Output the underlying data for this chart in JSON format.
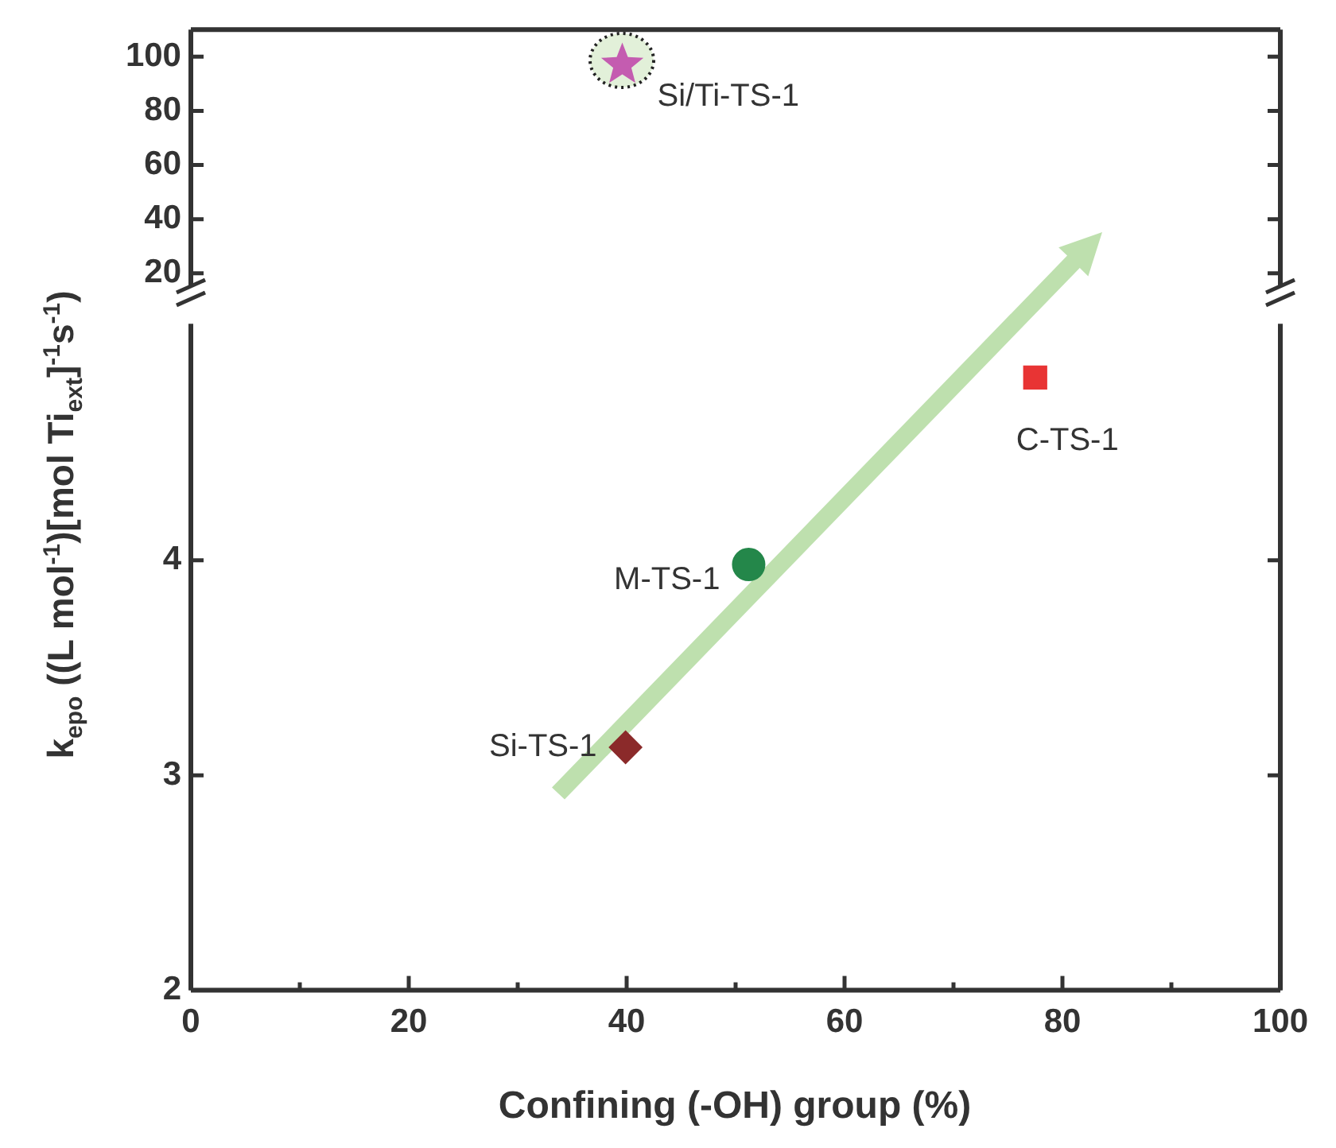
{
  "chart_data": [
    {
      "type": "scatter",
      "xlim": [
        0,
        100
      ],
      "ylim": [
        15,
        110
      ],
      "yticks": [
        20,
        40,
        60,
        80,
        100
      ],
      "tick_labels": "y",
      "series": [
        {
          "name": "Si/Ti-TS-1",
          "color": "#c45cb0",
          "marker": "star",
          "x": [
            39.6
          ],
          "values": [
            97
          ]
        }
      ]
    },
    {
      "type": "scatter",
      "xlabel": "Confining (-OH) group (%)",
      "ylabel": "k$_{epo}$ ((L mol$^{-1}$)[mol Ti$_{ext}$]$^{-1}$s$^{-1}$)",
      "xlim": [
        0,
        100
      ],
      "xticks": [
        0,
        {
          "value": 10,
          "label": null
        },
        20,
        {
          "value": 30,
          "label": null
        },
        40,
        {
          "value": 50,
          "label": null
        },
        60,
        {
          "value": 70,
          "label": null
        },
        80,
        {
          "value": 90,
          "label": null
        },
        100
      ],
      "ylim": [
        2,
        5.1
      ],
      "yticks": [
        2,
        3,
        4
      ],
      "series": [
        {
          "name": "C-TS-1",
          "color": "#e83434",
          "marker": "square",
          "x": [
            77.5
          ],
          "values": [
            4.85
          ]
        },
        {
          "name": "M-TS-1",
          "color": "#24874a",
          "marker": "circle",
          "x": [
            51.2
          ],
          "values": [
            3.98
          ]
        },
        {
          "name": "Si-TS-1",
          "color": "#8b2a2a",
          "marker": "diamond",
          "x": [
            39.9
          ],
          "values": [
            3.13
          ]
        }
      ]
    }
  ]
}
